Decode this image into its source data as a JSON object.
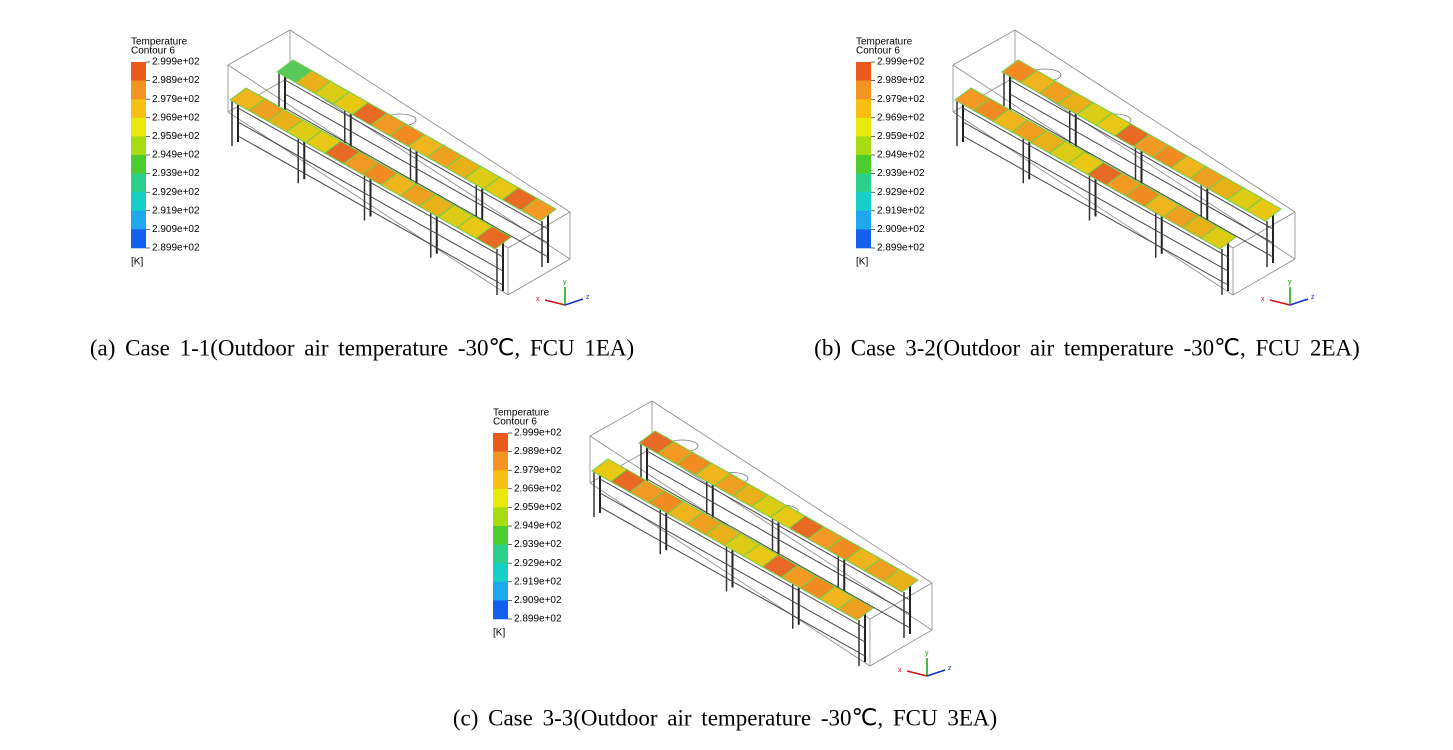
{
  "panels": [
    {
      "legend": {
        "title": "Temperature",
        "subtitle": "Contour 6",
        "labels": [
          "2.999e+02",
          "2.989e+02",
          "2.979e+02",
          "2.969e+02",
          "2.959e+02",
          "2.949e+02",
          "2.939e+02",
          "2.929e+02",
          "2.919e+02",
          "2.909e+02",
          "2.899e+02"
        ],
        "unit": "[K]"
      },
      "axes": {
        "x": "x",
        "y": "y",
        "z": "z"
      },
      "caption": "(a) Case 1-1(Outdoor air temperature -30℃, FCU 1EA)"
    },
    {
      "legend": {
        "title": "Temperature",
        "subtitle": "Contour 6",
        "labels": [
          "2.999e+02",
          "2.989e+02",
          "2.979e+02",
          "2.969e+02",
          "2.959e+02",
          "2.949e+02",
          "2.939e+02",
          "2.929e+02",
          "2.919e+02",
          "2.909e+02",
          "2.899e+02"
        ],
        "unit": "[K]"
      },
      "axes": {
        "x": "x",
        "y": "y",
        "z": "z"
      },
      "caption": "(b) Case 3-2(Outdoor air temperature -30℃, FCU 2EA)"
    },
    {
      "legend": {
        "title": "Temperature",
        "subtitle": "Contour 6",
        "labels": [
          "2.999e+02",
          "2.989e+02",
          "2.979e+02",
          "2.969e+02",
          "2.959e+02",
          "2.949e+02",
          "2.939e+02",
          "2.929e+02",
          "2.919e+02",
          "2.909e+02",
          "2.899e+02"
        ],
        "unit": "[K]"
      },
      "axes": {
        "x": "x",
        "y": "y",
        "z": "z"
      },
      "caption": "(c) Case 3-3(Outdoor air temperature -30℃, FCU 3EA)"
    }
  ]
}
